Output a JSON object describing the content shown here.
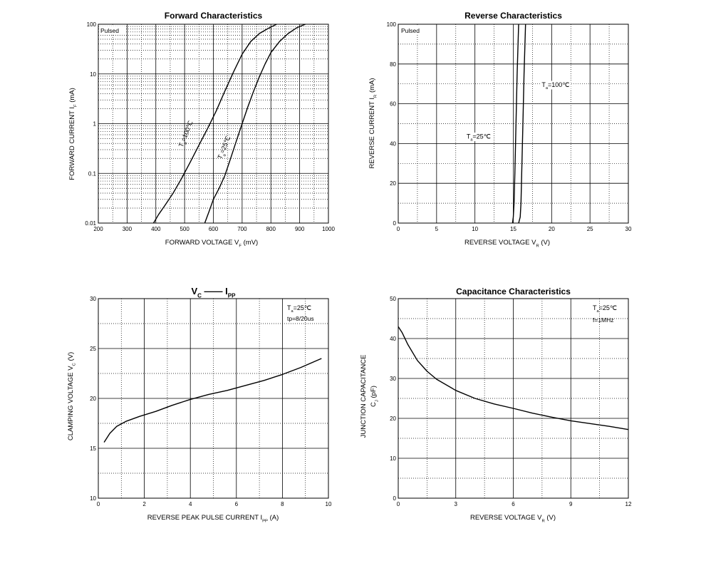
{
  "chart_data": [
    {
      "type": "line",
      "title": "Forward Characteristics",
      "xlabel": "FORWARD VOLTAGE",
      "xlabel_symbol": "V",
      "xlabel_sub": "F",
      "xlabel_unit": "(mV)",
      "ylabel": "FORWARD CURRENT",
      "ylabel_symbol": "I",
      "ylabel_sub": "F",
      "ylabel_unit": "(mA)",
      "xlim": [
        200,
        1000
      ],
      "ylim": [
        0.01,
        100
      ],
      "yscale": "log",
      "grid": true,
      "xticks": [
        "200",
        "300",
        "400",
        "500",
        "600",
        "700",
        "800",
        "900",
        "1000"
      ],
      "yticks": [
        "0.01",
        "0.1",
        "1",
        "10",
        "100"
      ],
      "note": "Pulsed",
      "series": [
        {
          "name": "Ta=100℃",
          "label_main": "T",
          "label_sub": "a",
          "label_rest": "=100℃",
          "x": [
            392,
            410,
            430,
            460,
            490,
            520,
            550,
            580,
            610,
            640,
            670,
            700,
            730,
            760,
            790,
            820
          ],
          "y": [
            0.01,
            0.015,
            0.022,
            0.04,
            0.08,
            0.17,
            0.37,
            0.8,
            1.8,
            4.5,
            11,
            25,
            45,
            65,
            82,
            100
          ]
        },
        {
          "name": "Ta=25℃",
          "label_main": "T",
          "label_sub": "a",
          "label_rest": "=25℃",
          "x": [
            570,
            585,
            600,
            620,
            640,
            660,
            680,
            700,
            720,
            740,
            760,
            780,
            800,
            830,
            860,
            890,
            920
          ],
          "y": [
            0.01,
            0.017,
            0.03,
            0.05,
            0.09,
            0.2,
            0.45,
            1.0,
            2.2,
            4.5,
            8.8,
            16,
            27,
            45,
            65,
            85,
            100
          ]
        }
      ]
    },
    {
      "type": "line",
      "title": "Reverse Characteristics",
      "xlabel": "REVERSE VOLTAGE",
      "xlabel_symbol": "V",
      "xlabel_sub": "R",
      "xlabel_unit": "(V)",
      "ylabel": "REVERSE CURRENT",
      "ylabel_symbol": "I",
      "ylabel_sub": "R",
      "ylabel_unit": "(mA)",
      "xlim": [
        0,
        30
      ],
      "ylim": [
        0,
        100
      ],
      "grid": true,
      "xticks": [
        "0",
        "5",
        "10",
        "15",
        "20",
        "25",
        "30"
      ],
      "yticks": [
        "0",
        "20",
        "40",
        "60",
        "80",
        "100"
      ],
      "note": "Pulsed",
      "series": [
        {
          "name": "Ta=25℃",
          "label_main": "T",
          "label_sub": "a",
          "label_rest": "=25℃",
          "x": [
            14.9,
            15.0,
            15.1,
            15.2,
            15.35,
            15.5,
            15.7
          ],
          "y": [
            0,
            3,
            10,
            25,
            50,
            75,
            100
          ]
        },
        {
          "name": "Ta=100℃",
          "label_main": "T",
          "label_sub": "a",
          "label_rest": "=100℃",
          "x": [
            15.7,
            15.9,
            16.0,
            16.1,
            16.25,
            16.4,
            16.6
          ],
          "y": [
            0,
            3,
            10,
            25,
            50,
            75,
            100
          ]
        }
      ]
    },
    {
      "type": "line",
      "title": "V",
      "title_sub": "C",
      "title_dash": "——",
      "title2": "I",
      "title2_sub": "PP",
      "xlabel": "REVERSE PEAK PULSE CURRENT",
      "xlabel_symbol": "I",
      "xlabel_sub": "PP",
      "xlabel_unit": "(A)",
      "ylabel": "CLAMPING VOLTAGE",
      "ylabel_symbol": "V",
      "ylabel_sub": "C",
      "ylabel_unit": "(V)",
      "xlim": [
        0,
        10
      ],
      "ylim": [
        10,
        30
      ],
      "grid": true,
      "xticks": [
        "0",
        "2",
        "4",
        "6",
        "8",
        "10"
      ],
      "yticks": [
        "10",
        "15",
        "20",
        "25",
        "30"
      ],
      "note1_main": "T",
      "note1_sub": "a",
      "note1_rest": "=25℃",
      "note2": "tp=8/20us",
      "series": [
        {
          "x": [
            0.25,
            0.5,
            0.8,
            1.2,
            1.8,
            2.5,
            3.2,
            4.0,
            4.8,
            5.6,
            6.4,
            7.2,
            8.0,
            8.8,
            9.7
          ],
          "y": [
            15.6,
            16.5,
            17.2,
            17.7,
            18.2,
            18.7,
            19.3,
            19.9,
            20.4,
            20.8,
            21.3,
            21.8,
            22.4,
            23.1,
            24.0
          ]
        }
      ]
    },
    {
      "type": "line",
      "title": "Capacitance Characteristics",
      "xlabel": "REVERSE VOLTAGE",
      "xlabel_symbol": "V",
      "xlabel_sub": "R",
      "xlabel_unit": "(V)",
      "ylabel": "JUNCTION CAPACITANCE",
      "ylabel_symbol": "C",
      "ylabel_sub": "J",
      "ylabel_unit": "(pF)",
      "xlim": [
        0,
        12
      ],
      "ylim": [
        0,
        50
      ],
      "grid": true,
      "xticks": [
        "0",
        "3",
        "6",
        "9",
        "12"
      ],
      "yticks": [
        "0",
        "10",
        "20",
        "30",
        "40",
        "50"
      ],
      "note1_main": "T",
      "note1_sub": "a",
      "note1_rest": "=25℃",
      "note2": "f=1MHz",
      "series": [
        {
          "x": [
            0.0,
            0.2,
            0.5,
            1.0,
            1.5,
            2.0,
            3.0,
            4.0,
            5.0,
            6.0,
            7.0,
            8.0,
            9.0,
            10.0,
            11.0,
            12.0
          ],
          "y": [
            43,
            41.5,
            38.5,
            34.5,
            31.8,
            29.8,
            27.0,
            25.0,
            23.6,
            22.5,
            21.3,
            20.3,
            19.4,
            18.7,
            18.0,
            17.2
          ]
        }
      ]
    }
  ]
}
